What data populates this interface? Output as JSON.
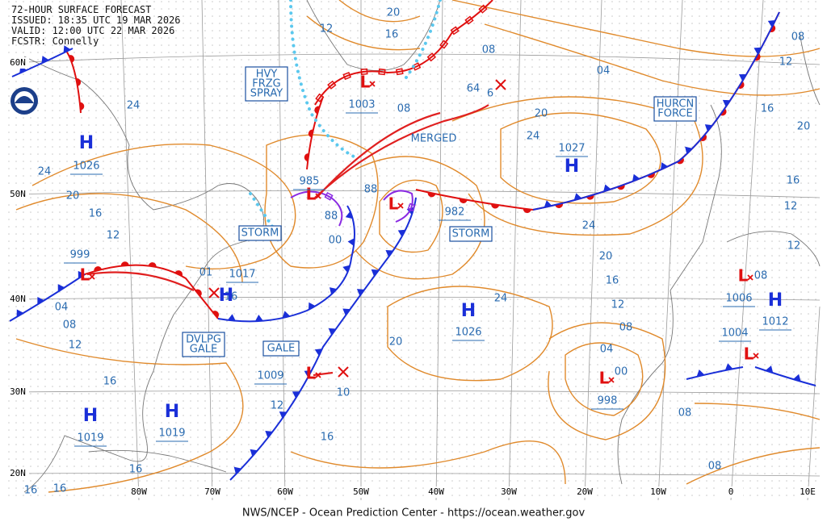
{
  "header": {
    "title": "72-HOUR SURFACE FORECAST",
    "issued": "ISSUED: 18:35 UTC 19 MAR 2026",
    "valid": "VALID: 12:00 UTC 22 MAR 2026",
    "forecaster": "FCSTR: Connelly"
  },
  "footer": "NWS/NCEP - Ocean Prediction Center - https://ocean.weather.gov",
  "latitude_labels": [
    "60N",
    "50N",
    "40N",
    "30N",
    "20N"
  ],
  "longitude_labels": [
    "80W",
    "70W",
    "60W",
    "50W",
    "40W",
    "30W",
    "20W",
    "10W",
    "0",
    "10E"
  ],
  "highs": [
    {
      "symbol": "H",
      "pressure": "1026"
    },
    {
      "symbol": "H",
      "pressure": "1027"
    },
    {
      "symbol": "H",
      "pressure": "1026"
    },
    {
      "symbol": "H",
      "pressure": "1019"
    },
    {
      "symbol": "H",
      "pressure": "1019"
    },
    {
      "symbol": "H",
      "pressure": "1017"
    },
    {
      "symbol": "H",
      "pressure": "1012"
    }
  ],
  "lows": [
    {
      "symbol": "L",
      "pressure": "1003"
    },
    {
      "symbol": "L",
      "pressure": "985"
    },
    {
      "symbol": "L",
      "pressure": "982"
    },
    {
      "symbol": "L",
      "pressure": "999"
    },
    {
      "symbol": "L",
      "pressure": "1009"
    },
    {
      "symbol": "L",
      "pressure": "998"
    },
    {
      "symbol": "L",
      "pressure": "1006"
    },
    {
      "symbol": "L",
      "pressure": "1004"
    }
  ],
  "other_pressures": [
    "64",
    "01",
    "10"
  ],
  "warnings": [
    {
      "lines": [
        "HVY",
        "FRZG",
        "SPRAY"
      ]
    },
    {
      "lines": [
        "HURCN",
        "FORCE"
      ]
    },
    {
      "lines": [
        "STORM"
      ]
    },
    {
      "lines": [
        "STORM"
      ]
    },
    {
      "lines": [
        "DVLPG",
        "GALE"
      ]
    },
    {
      "lines": [
        "GALE"
      ]
    }
  ],
  "annotations": [
    "MERGED"
  ],
  "isobar_labels": [
    "20",
    "12",
    "16",
    "08",
    "04",
    "08",
    "12",
    "16",
    "20",
    "24",
    "24",
    "20",
    "16",
    "12",
    "08",
    "24",
    "20",
    "88",
    "88",
    "00",
    "16",
    "04",
    "08",
    "12",
    "24",
    "20",
    "16",
    "12",
    "08",
    "04",
    "00",
    "24",
    "20",
    "12",
    "16",
    "16",
    "16",
    "16",
    "16",
    "08",
    "08",
    "16",
    "12",
    "12",
    "08",
    "6"
  ]
}
